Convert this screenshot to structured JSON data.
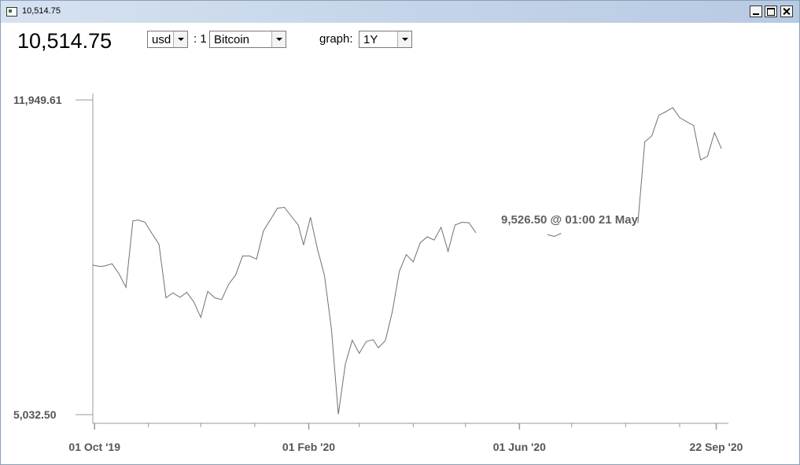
{
  "window": {
    "title": "10,514.75"
  },
  "header": {
    "price": "10,514.75",
    "currency": "usd",
    "separator": ": 1",
    "coin": "Bitcoin",
    "graph_label": "graph:",
    "range": "1Y"
  },
  "tooltip": {
    "text": "9,526.50 @ 01:00 21 May"
  },
  "chart_data": {
    "type": "line",
    "title": "",
    "xlabel": "",
    "ylabel": "",
    "y_tick_labels": [
      "11,949.61",
      "5,032.50"
    ],
    "y_ticks": [
      11949.61,
      5032.5
    ],
    "ylim": [
      5032.5,
      11949.61
    ],
    "x_tick_labels": [
      "01 Oct '19",
      "01 Feb '20",
      "01 Jun '20",
      "22 Sep '20"
    ],
    "xlim": [
      "2019-09-30",
      "2020-09-29"
    ],
    "grid": false,
    "series": [
      {
        "x": [
          "2019-09-30",
          "2019-10-04",
          "2019-10-07",
          "2019-10-11",
          "2019-10-15",
          "2019-10-19",
          "2019-10-23",
          "2019-10-26",
          "2019-10-30",
          "2019-11-03",
          "2019-11-07",
          "2019-11-11",
          "2019-11-15",
          "2019-11-19",
          "2019-11-23",
          "2019-11-27",
          "2019-12-01",
          "2019-12-05",
          "2019-12-09",
          "2019-12-13",
          "2019-12-17",
          "2019-12-21",
          "2019-12-25",
          "2019-12-29",
          "2020-01-02",
          "2020-01-06",
          "2020-01-10",
          "2020-01-14",
          "2020-01-18",
          "2020-01-22",
          "2020-01-26",
          "2020-01-29",
          "2020-02-02",
          "2020-02-06",
          "2020-02-10",
          "2020-02-14",
          "2020-02-18",
          "2020-02-22",
          "2020-02-26",
          "2020-03-01",
          "2020-03-05",
          "2020-03-09",
          "2020-03-12",
          "2020-03-16",
          "2020-03-20",
          "2020-03-24",
          "2020-03-28",
          "2020-04-01",
          "2020-04-05",
          "2020-04-09",
          "2020-04-13",
          "2020-04-17",
          "2020-04-21",
          "2020-04-25",
          "2020-04-29",
          "2020-05-03",
          "2020-05-07",
          "2020-05-10",
          "2020-05-14",
          "2020-05-18",
          "2020-05-21",
          "2020-05-25",
          "2020-05-29",
          "2020-06-01",
          "2020-06-05",
          "2020-06-09",
          "2020-06-13",
          "2020-06-17",
          "2020-06-21",
          "2020-06-25",
          "2020-06-29",
          "2020-07-03",
          "2020-07-07",
          "2020-07-11",
          "2020-07-15",
          "2020-07-19",
          "2020-07-23",
          "2020-07-27",
          "2020-07-31",
          "2020-08-04",
          "2020-08-08",
          "2020-08-12",
          "2020-08-16",
          "2020-08-20",
          "2020-08-24",
          "2020-08-28",
          "2020-09-01",
          "2020-09-05",
          "2020-09-09",
          "2020-09-13",
          "2020-09-17",
          "2020-09-21",
          "2020-09-25",
          "2020-09-29"
        ],
        "y": [
          8320,
          8290,
          8300,
          8350,
          8130,
          7830,
          9290,
          9310,
          9260,
          9010,
          8780,
          7600,
          7710,
          7610,
          7720,
          7510,
          7170,
          7740,
          7600,
          7560,
          7900,
          8100,
          8520,
          8520,
          8450,
          9070,
          9320,
          9570,
          9590,
          9390,
          9200,
          8760,
          9370,
          8670,
          8100,
          6920,
          5040,
          6140,
          6670,
          6380,
          6640,
          6680,
          6500,
          6660,
          7300,
          8180,
          8550,
          8390,
          8810,
          8940,
          8870,
          9150,
          8620,
          9200,
          9260,
          9250,
          9030,
          null,
          null,
          null,
          9526.5,
          null,
          null,
          null,
          null,
          null,
          null,
          8990,
          8950,
          9020,
          null,
          null,
          null,
          null,
          null,
          null,
          null,
          null,
          null,
          null,
          9240,
          11030,
          11160,
          11610,
          11690,
          11780,
          11560,
          11470,
          11390,
          10630,
          10710,
          11230,
          10880,
          null
        ]
      }
    ]
  }
}
